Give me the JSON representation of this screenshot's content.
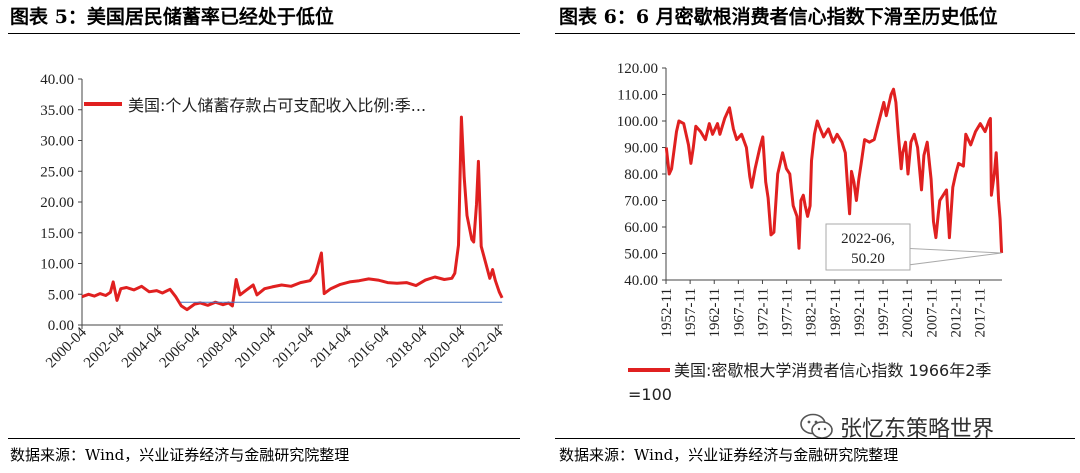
{
  "header": {
    "left_title": "图表 5：美国居民储蓄率已经处于低位",
    "right_title": "图表 6：6 月密歇根消费者信心指数下滑至历史低位"
  },
  "footer": {
    "left_source": "数据来源：Wind，兴业证券经济与金融研究院整理",
    "right_source": "数据来源：Wind，兴业证券经济与金融研究院整理"
  },
  "watermark": {
    "icon": "wechat-icon",
    "text": "张忆东策略世界"
  },
  "chart_data": [
    {
      "type": "line",
      "title": "",
      "xlabel": "",
      "ylabel": "",
      "ylim": [
        0,
        40
      ],
      "yticks": [
        "0.00",
        "5.00",
        "10.00",
        "15.00",
        "20.00",
        "25.00",
        "30.00",
        "35.00",
        "40.00"
      ],
      "xticks": [
        "2000-04",
        "2002-04",
        "2004-04",
        "2006-04",
        "2008-04",
        "2010-04",
        "2012-04",
        "2014-04",
        "2016-04",
        "2018-04",
        "2020-04",
        "2022-04"
      ],
      "xlim": [
        2000.25,
        2022.5
      ],
      "grid": false,
      "legend": "top-left",
      "series": [
        {
          "name": "美国:个人储蓄存款占可支配收入比例:季...",
          "color": "#e02020",
          "points": [
            [
              2000.25,
              4.6
            ],
            [
              2000.6,
              5.0
            ],
            [
              2000.9,
              4.7
            ],
            [
              2001.2,
              5.1
            ],
            [
              2001.5,
              4.8
            ],
            [
              2001.75,
              5.3
            ],
            [
              2001.9,
              7.0
            ],
            [
              2002.1,
              4.0
            ],
            [
              2002.3,
              5.9
            ],
            [
              2002.6,
              6.1
            ],
            [
              2003.0,
              5.7
            ],
            [
              2003.4,
              6.3
            ],
            [
              2003.8,
              5.4
            ],
            [
              2004.2,
              5.6
            ],
            [
              2004.5,
              5.2
            ],
            [
              2004.9,
              5.8
            ],
            [
              2005.2,
              4.6
            ],
            [
              2005.5,
              3.1
            ],
            [
              2005.8,
              2.5
            ],
            [
              2006.2,
              3.4
            ],
            [
              2006.5,
              3.6
            ],
            [
              2006.9,
              3.2
            ],
            [
              2007.3,
              3.7
            ],
            [
              2007.7,
              3.3
            ],
            [
              2008.0,
              3.6
            ],
            [
              2008.2,
              3.1
            ],
            [
              2008.4,
              7.4
            ],
            [
              2008.6,
              4.9
            ],
            [
              2008.9,
              5.6
            ],
            [
              2009.3,
              6.5
            ],
            [
              2009.5,
              4.9
            ],
            [
              2009.9,
              5.9
            ],
            [
              2010.3,
              6.2
            ],
            [
              2010.8,
              6.5
            ],
            [
              2011.3,
              6.3
            ],
            [
              2011.8,
              6.9
            ],
            [
              2012.3,
              7.2
            ],
            [
              2012.6,
              8.4
            ],
            [
              2012.9,
              11.7
            ],
            [
              2013.05,
              5.1
            ],
            [
              2013.4,
              5.9
            ],
            [
              2013.9,
              6.6
            ],
            [
              2014.4,
              7.0
            ],
            [
              2014.9,
              7.2
            ],
            [
              2015.4,
              7.5
            ],
            [
              2015.9,
              7.3
            ],
            [
              2016.4,
              6.9
            ],
            [
              2016.9,
              6.8
            ],
            [
              2017.4,
              6.9
            ],
            [
              2017.9,
              6.4
            ],
            [
              2018.4,
              7.3
            ],
            [
              2018.9,
              7.8
            ],
            [
              2019.4,
              7.4
            ],
            [
              2019.8,
              7.6
            ],
            [
              2019.95,
              8.4
            ],
            [
              2020.15,
              13.0
            ],
            [
              2020.3,
              33.8
            ],
            [
              2020.45,
              24.0
            ],
            [
              2020.6,
              17.8
            ],
            [
              2020.85,
              13.9
            ],
            [
              2020.95,
              13.5
            ],
            [
              2021.1,
              19.6
            ],
            [
              2021.2,
              26.6
            ],
            [
              2021.35,
              12.8
            ],
            [
              2021.6,
              9.9
            ],
            [
              2021.8,
              7.6
            ],
            [
              2021.95,
              9.0
            ],
            [
              2022.1,
              7.2
            ],
            [
              2022.3,
              5.4
            ],
            [
              2022.45,
              4.4
            ]
          ]
        },
        {
          "name": "",
          "color": "#4472c4",
          "points": [
            [
              2005.45,
              3.7
            ],
            [
              2022.45,
              3.7
            ]
          ]
        }
      ]
    },
    {
      "type": "line",
      "title": "",
      "xlabel": "",
      "ylabel": "",
      "ylim": [
        40,
        120
      ],
      "yticks": [
        "40.00",
        "50.00",
        "60.00",
        "70.00",
        "80.00",
        "90.00",
        "100.00",
        "110.00",
        "120.00"
      ],
      "xticks": [
        "1952-11",
        "1957-11",
        "1962-11",
        "1967-11",
        "1972-11",
        "1977-11",
        "1982-11",
        "1987-11",
        "1992-11",
        "1997-11",
        "2002-11",
        "2007-11",
        "2012-11",
        "2017-11"
      ],
      "xlim": [
        1952.83,
        2022.5
      ],
      "grid": false,
      "legend": "bottom",
      "annotation": {
        "lines": [
          "2022-06,",
          "50.20"
        ],
        "x": 2022.42,
        "y": 50.2
      },
      "series": [
        {
          "name": "美国:密歇根大学消费者信心指数 1966年2季=100",
          "color": "#e02020",
          "points": [
            [
              1952.9,
              90
            ],
            [
              1953.5,
              80
            ],
            [
              1954.0,
              82
            ],
            [
              1955.0,
              96
            ],
            [
              1955.5,
              100
            ],
            [
              1956.5,
              99
            ],
            [
              1957.5,
              91
            ],
            [
              1958.0,
              84
            ],
            [
              1958.5,
              90
            ],
            [
              1959.0,
              98
            ],
            [
              1960.0,
              96
            ],
            [
              1961.0,
              93
            ],
            [
              1961.8,
              99
            ],
            [
              1962.5,
              95
            ],
            [
              1963.5,
              99
            ],
            [
              1964.0,
              95
            ],
            [
              1965.0,
              101
            ],
            [
              1966.0,
              105
            ],
            [
              1966.8,
              97
            ],
            [
              1967.5,
              93
            ],
            [
              1968.5,
              95
            ],
            [
              1969.5,
              90
            ],
            [
              1970.2,
              79
            ],
            [
              1970.6,
              75
            ],
            [
              1971.3,
              82
            ],
            [
              1972.3,
              90
            ],
            [
              1972.9,
              94
            ],
            [
              1973.5,
              77
            ],
            [
              1974.0,
              71
            ],
            [
              1974.6,
              57
            ],
            [
              1975.2,
              58
            ],
            [
              1976.0,
              80
            ],
            [
              1977.0,
              88
            ],
            [
              1977.8,
              82
            ],
            [
              1978.5,
              80
            ],
            [
              1979.2,
              68
            ],
            [
              1980.0,
              64
            ],
            [
              1980.4,
              52
            ],
            [
              1980.8,
              70
            ],
            [
              1981.3,
              72
            ],
            [
              1981.7,
              68
            ],
            [
              1982.2,
              64
            ],
            [
              1982.7,
              68
            ],
            [
              1983.0,
              85
            ],
            [
              1983.6,
              95
            ],
            [
              1984.2,
              100
            ],
            [
              1984.6,
              98
            ],
            [
              1985.5,
              94
            ],
            [
              1986.5,
              97
            ],
            [
              1987.5,
              92
            ],
            [
              1988.3,
              95
            ],
            [
              1989.3,
              92
            ],
            [
              1990.0,
              88
            ],
            [
              1990.6,
              72
            ],
            [
              1990.9,
              65
            ],
            [
              1991.3,
              81
            ],
            [
              1991.8,
              77
            ],
            [
              1992.3,
              70
            ],
            [
              1992.8,
              78
            ],
            [
              1993.3,
              84
            ],
            [
              1994.0,
              93
            ],
            [
              1995.0,
              92
            ],
            [
              1996.0,
              93
            ],
            [
              1997.0,
              100
            ],
            [
              1998.0,
              107
            ],
            [
              1998.5,
              102
            ],
            [
              1999.0,
              106
            ],
            [
              1999.5,
              110
            ],
            [
              2000.0,
              112
            ],
            [
              2000.5,
              107
            ],
            [
              2001.0,
              95
            ],
            [
              2001.6,
              82
            ],
            [
              2001.9,
              88
            ],
            [
              2002.5,
              92
            ],
            [
              2003.0,
              80
            ],
            [
              2003.6,
              92
            ],
            [
              2004.3,
              95
            ],
            [
              2005.0,
              90
            ],
            [
              2005.8,
              74
            ],
            [
              2006.3,
              87
            ],
            [
              2007.0,
              92
            ],
            [
              2007.8,
              78
            ],
            [
              2008.3,
              62
            ],
            [
              2008.8,
              56
            ],
            [
              2009.3,
              65
            ],
            [
              2009.6,
              70
            ],
            [
              2010.3,
              72
            ],
            [
              2011.0,
              74
            ],
            [
              2011.6,
              56
            ],
            [
              2012.3,
              75
            ],
            [
              2012.9,
              80
            ],
            [
              2013.5,
              84
            ],
            [
              2014.5,
              83
            ],
            [
              2015.0,
              95
            ],
            [
              2016.0,
              91
            ],
            [
              2017.0,
              96
            ],
            [
              2018.0,
              99
            ],
            [
              2019.0,
              96
            ],
            [
              2019.8,
              100
            ],
            [
              2020.1,
              101
            ],
            [
              2020.3,
              72
            ],
            [
              2020.9,
              80
            ],
            [
              2021.3,
              88
            ],
            [
              2021.5,
              81
            ],
            [
              2021.8,
              70
            ],
            [
              2022.1,
              63
            ],
            [
              2022.42,
              50.2
            ]
          ]
        }
      ]
    }
  ]
}
